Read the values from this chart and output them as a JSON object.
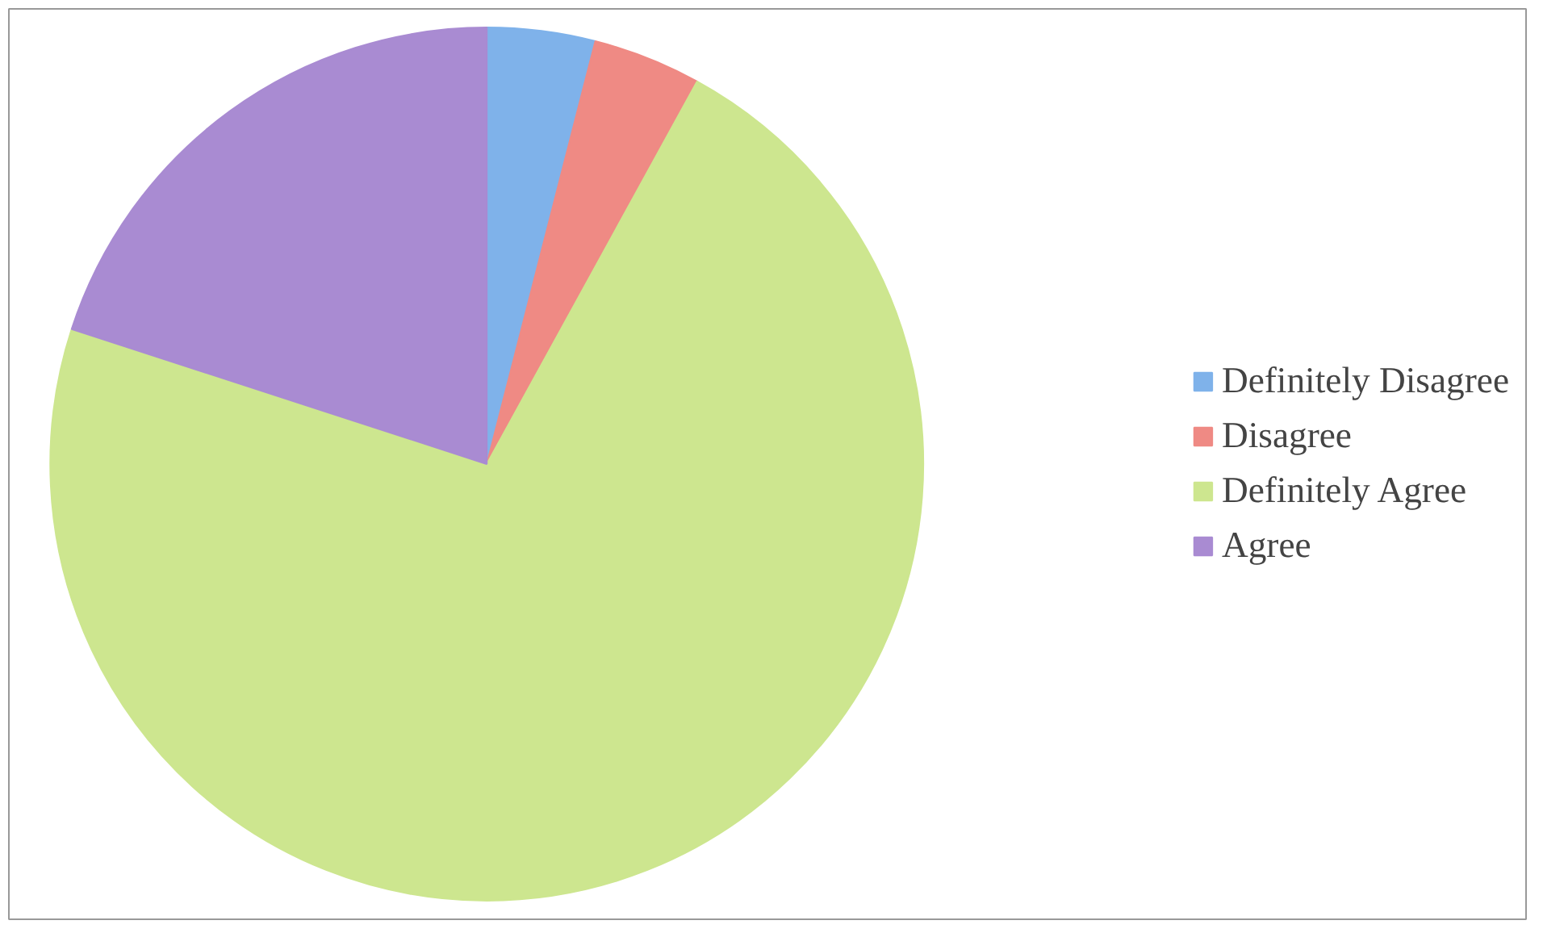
{
  "chart_data": {
    "type": "pie",
    "categories": [
      "Definitely Disagree",
      "Disagree",
      "Definitely Agree",
      "Agree"
    ],
    "values": [
      4,
      4,
      72,
      20
    ],
    "colors": [
      "#7fb2ea",
      "#ef8a84",
      "#cde68f",
      "#a98bd2"
    ],
    "legend": "right"
  }
}
